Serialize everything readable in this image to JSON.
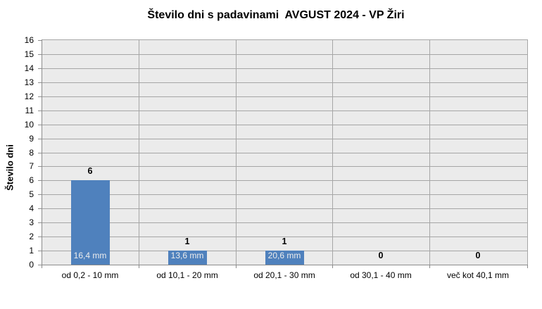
{
  "chart_data": {
    "type": "bar",
    "title": "Število dni s padavinami  AVGUST 2024 - VP Žiri",
    "ylabel": "Število dni",
    "xlabel": "",
    "categories": [
      "od 0,2 - 10 mm",
      "od 10,1 - 20 mm",
      "od 20,1 - 30 mm",
      "od 30,1 - 40 mm",
      "več kot 40,1 mm"
    ],
    "values": [
      6,
      1,
      1,
      0,
      0
    ],
    "value_labels": [
      "6",
      "1",
      "1",
      "0",
      "0"
    ],
    "bar_inner_labels": [
      "16,4 mm",
      "13,6 mm",
      "20,6 mm",
      "",
      ""
    ],
    "ylim": [
      0,
      16
    ],
    "ytick_step": 1,
    "ytick_labels": [
      "0",
      "1",
      "2",
      "3",
      "4",
      "5",
      "6",
      "7",
      "8",
      "9",
      "10",
      "11",
      "12",
      "13",
      "14",
      "15",
      "16"
    ],
    "grid": "horizontal and vertical major gridlines",
    "legend": "none",
    "colors": {
      "bar_fill": "#4F81BD",
      "bar_inner_label_text": "#EDEDED",
      "plot_background": "#EBEBEB",
      "gridline": "#A6A6A6",
      "axis_line": "#8C8C8C",
      "text": "#000000",
      "page_background": "#FFFFFF"
    }
  }
}
